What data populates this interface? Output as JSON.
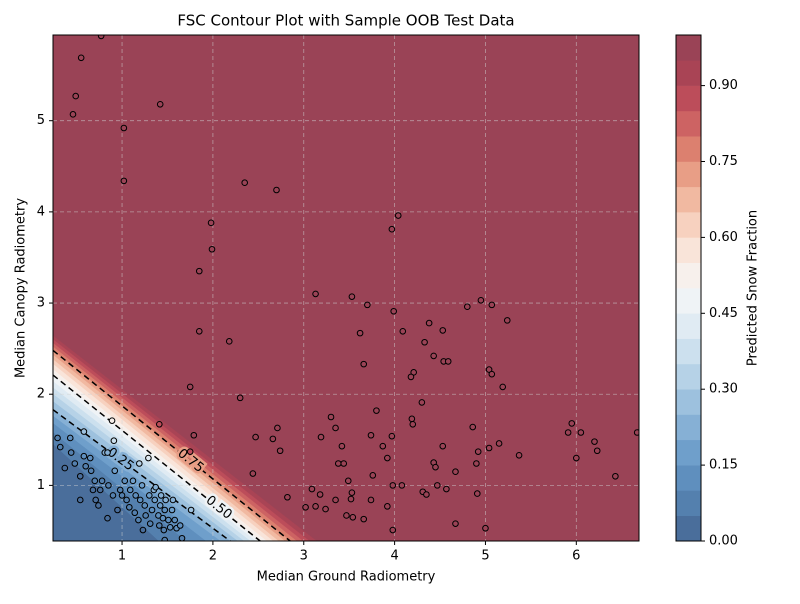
{
  "chart_data": {
    "type": "contour_scatter",
    "title": "FSC Contour Plot with Sample OOB Test Data",
    "x_label": "Median Ground Radiometry",
    "y_label": "Median Canopy Radiometry",
    "colorbar_label": "Predicted Snow Fraction",
    "xlim": [
      0.24,
      6.69
    ],
    "ylim": [
      0.39,
      5.94
    ],
    "xticks": [
      1,
      2,
      3,
      4,
      5,
      6
    ],
    "yticks": [
      1,
      2,
      3,
      4,
      5
    ],
    "grid": true,
    "levels": [
      0,
      0.05,
      0.1,
      0.15,
      0.2,
      0.25,
      0.3,
      0.35,
      0.4,
      0.45,
      0.5,
      0.55,
      0.6,
      0.65,
      0.7,
      0.75,
      0.8,
      0.85,
      0.9,
      0.95,
      1
    ],
    "colors": [
      "#4a6e9b",
      "#5480ae",
      "#5f8fbe",
      "#6f9fcb",
      "#86b0d5",
      "#9dc1de",
      "#b6d2e7",
      "#cce0ee",
      "#e0ebf3",
      "#eff3f6",
      "#f7f0ec",
      "#f9e4d9",
      "#f7d1bf",
      "#f1b9a1",
      "#e89e86",
      "#dc806f",
      "#cd6363",
      "#bc4d5a",
      "#a94455",
      "#9a4356"
    ],
    "colorbar_ticks": [
      {
        "value": 0,
        "label": "0.00"
      },
      {
        "value": 0.15,
        "label": "0.15"
      },
      {
        "value": 0.3,
        "label": "0.30"
      },
      {
        "value": 0.45,
        "label": "0.45"
      },
      {
        "value": 0.6,
        "label": "0.60"
      },
      {
        "value": 0.75,
        "label": "0.75"
      },
      {
        "value": 0.9,
        "label": "0.90"
      }
    ],
    "contour_lines": [
      {
        "level": 0.05,
        "x": [
          0.24,
          1.4
        ],
        "y": [
          1.45,
          0.39
        ]
      },
      {
        "level": 0.1,
        "x": [
          0.24,
          1.7
        ],
        "y": [
          1.58,
          0.39
        ]
      },
      {
        "level": 0.15,
        "x": [
          0.24,
          1.92
        ],
        "y": [
          1.68,
          0.39
        ]
      },
      {
        "level": 0.2,
        "x": [
          0.24,
          2.08
        ],
        "y": [
          1.76,
          0.39
        ]
      },
      {
        "level": 0.25,
        "label": "0.25",
        "x": [
          0.24,
          2.19
        ],
        "y": [
          1.83,
          0.39
        ]
      },
      {
        "level": 0.3,
        "x": [
          0.24,
          2.27
        ],
        "y": [
          1.92,
          0.39
        ]
      },
      {
        "level": 0.35,
        "x": [
          0.24,
          2.34
        ],
        "y": [
          2.0,
          0.39
        ]
      },
      {
        "level": 0.4,
        "x": [
          0.24,
          2.41
        ],
        "y": [
          2.07,
          0.39
        ]
      },
      {
        "level": 0.45,
        "x": [
          0.24,
          2.47
        ],
        "y": [
          2.14,
          0.39
        ]
      },
      {
        "level": 0.5,
        "label": "0.50",
        "x": [
          0.24,
          2.52
        ],
        "y": [
          2.21,
          0.39
        ]
      },
      {
        "level": 0.55,
        "x": [
          0.24,
          2.59
        ],
        "y": [
          2.27,
          0.39
        ]
      },
      {
        "level": 0.6,
        "x": [
          0.24,
          2.66
        ],
        "y": [
          2.33,
          0.39
        ]
      },
      {
        "level": 0.65,
        "x": [
          0.24,
          2.72
        ],
        "y": [
          2.38,
          0.39
        ]
      },
      {
        "level": 0.7,
        "x": [
          0.24,
          2.79
        ],
        "y": [
          2.43,
          0.39
        ]
      },
      {
        "level": 0.75,
        "label": "0.75",
        "x": [
          0.24,
          2.85
        ],
        "y": [
          2.48,
          0.39
        ]
      },
      {
        "level": 0.8,
        "x": [
          0.24,
          2.92
        ],
        "y": [
          2.52,
          0.39
        ]
      },
      {
        "level": 0.85,
        "x": [
          0.24,
          2.99
        ],
        "y": [
          2.56,
          0.39
        ]
      },
      {
        "level": 0.9,
        "x": [
          0.24,
          3.06
        ],
        "y": [
          2.6,
          0.39
        ]
      },
      {
        "level": 0.95,
        "x": [
          0.24,
          3.14
        ],
        "y": [
          2.64,
          0.39
        ]
      }
    ],
    "scatter": {
      "x": [
        0.77,
        0.55,
        0.49,
        0.46,
        1.42,
        1.02,
        1.02,
        2.35,
        2.7,
        1.98,
        1.99,
        1.85,
        1.85,
        2.18,
        1.75,
        2.3,
        1.41,
        1.79,
        1.75,
        2.47,
        2.71,
        2.66,
        2.74,
        2.44,
        2.82,
        3.13,
        3.53,
        3.7,
        3.62,
        3.66,
        3.8,
        3.3,
        3.35,
        3.19,
        3.42,
        3.38,
        3.44,
        3.74,
        3.97,
        3.87,
        3.92,
        3.49,
        3.76,
        3.35,
        3.18,
        3.09,
        3.53,
        3.52,
        3.74,
        3.13,
        3.02,
        3.24,
        3.47,
        3.54,
        3.66,
        3.92,
        3.98,
        4.08,
        3.98,
        4.04,
        3.97,
        3.99,
        4.09,
        4.38,
        4.33,
        4.53,
        4.43,
        4.54,
        4.59,
        4.21,
        4.18,
        4.19,
        4.2,
        4.3,
        4.53,
        4.43,
        4.45,
        4.67,
        4.47,
        4.57,
        4.31,
        4.35,
        4.67,
        4.8,
        4.95,
        5.07,
        5.24,
        5.19,
        5.04,
        5.07,
        4.86,
        4.92,
        5.04,
        5.15,
        4.9,
        5.37,
        4.91,
        5.0,
        5.91,
        5.95,
        6.05,
        6.0,
        6.2,
        6.23,
        6.43,
        6.67,
        0.29,
        0.32,
        0.37,
        0.43,
        0.44,
        0.48,
        0.54,
        0.54,
        0.58,
        0.58,
        0.6,
        0.65,
        0.66,
        0.68,
        0.7,
        0.71,
        0.74,
        0.76,
        0.78,
        0.81,
        0.84,
        0.85,
        0.89,
        0.91,
        0.92,
        0.95,
        0.98,
        1.0,
        1.03,
        1.05,
        1.08,
        1.09,
        1.12,
        1.14,
        1.15,
        1.18,
        1.19,
        1.2,
        1.22,
        1.23,
        1.25,
        1.26,
        1.29,
        1.3,
        1.31,
        1.33,
        1.35,
        1.36,
        1.37,
        1.4,
        1.41,
        1.42,
        1.43,
        1.45,
        1.46,
        1.47,
        1.48,
        1.51,
        1.53,
        1.55,
        1.56,
        1.58,
        1.6,
        1.64,
        1.66,
        1.76,
        1.47,
        0.84,
        0.9
      ],
      "y": [
        5.93,
        5.69,
        5.27,
        5.07,
        5.18,
        4.92,
        4.34,
        4.32,
        4.24,
        3.88,
        3.59,
        3.35,
        2.69,
        2.58,
        2.08,
        1.96,
        1.67,
        1.55,
        1.37,
        1.53,
        1.63,
        1.51,
        1.38,
        1.13,
        0.87,
        3.1,
        3.07,
        2.98,
        2.67,
        2.33,
        1.82,
        1.75,
        1.63,
        1.53,
        1.43,
        1.24,
        1.24,
        1.55,
        1.54,
        1.43,
        1.3,
        1.05,
        1.11,
        0.84,
        0.9,
        0.96,
        0.92,
        0.85,
        0.84,
        0.77,
        0.76,
        0.74,
        0.67,
        0.65,
        0.63,
        0.77,
        1.0,
        1.0,
        0.51,
        3.96,
        3.81,
        2.91,
        2.69,
        2.78,
        2.57,
        2.7,
        2.42,
        2.36,
        2.36,
        2.24,
        2.19,
        1.73,
        1.67,
        1.91,
        1.43,
        1.25,
        1.2,
        1.15,
        1.0,
        0.96,
        0.93,
        0.9,
        0.58,
        2.96,
        3.03,
        2.98,
        2.81,
        2.08,
        2.27,
        2.22,
        1.64,
        1.37,
        1.41,
        1.46,
        1.24,
        1.33,
        0.91,
        0.53,
        1.58,
        1.68,
        1.58,
        1.3,
        1.48,
        1.38,
        1.1,
        1.58,
        1.52,
        1.42,
        1.19,
        1.52,
        1.36,
        1.24,
        1.1,
        0.84,
        1.59,
        1.32,
        1.21,
        1.3,
        1.16,
        0.95,
        1.05,
        0.84,
        0.78,
        0.95,
        1.05,
        1.36,
        0.64,
        1.0,
        1.71,
        1.49,
        1.16,
        0.73,
        0.95,
        0.89,
        1.05,
        0.84,
        0.76,
        0.95,
        1.05,
        0.7,
        0.89,
        0.62,
        1.24,
        0.84,
        1.0,
        0.51,
        0.78,
        0.67,
        1.3,
        0.89,
        0.58,
        0.73,
        0.95,
        0.84,
        0.98,
        0.67,
        0.56,
        0.78,
        0.89,
        0.64,
        0.51,
        0.73,
        0.84,
        0.62,
        0.54,
        0.73,
        0.84,
        0.62,
        0.53,
        0.56,
        0.42,
        0.73,
        0.4,
        1.36,
        0.89
      ]
    }
  }
}
